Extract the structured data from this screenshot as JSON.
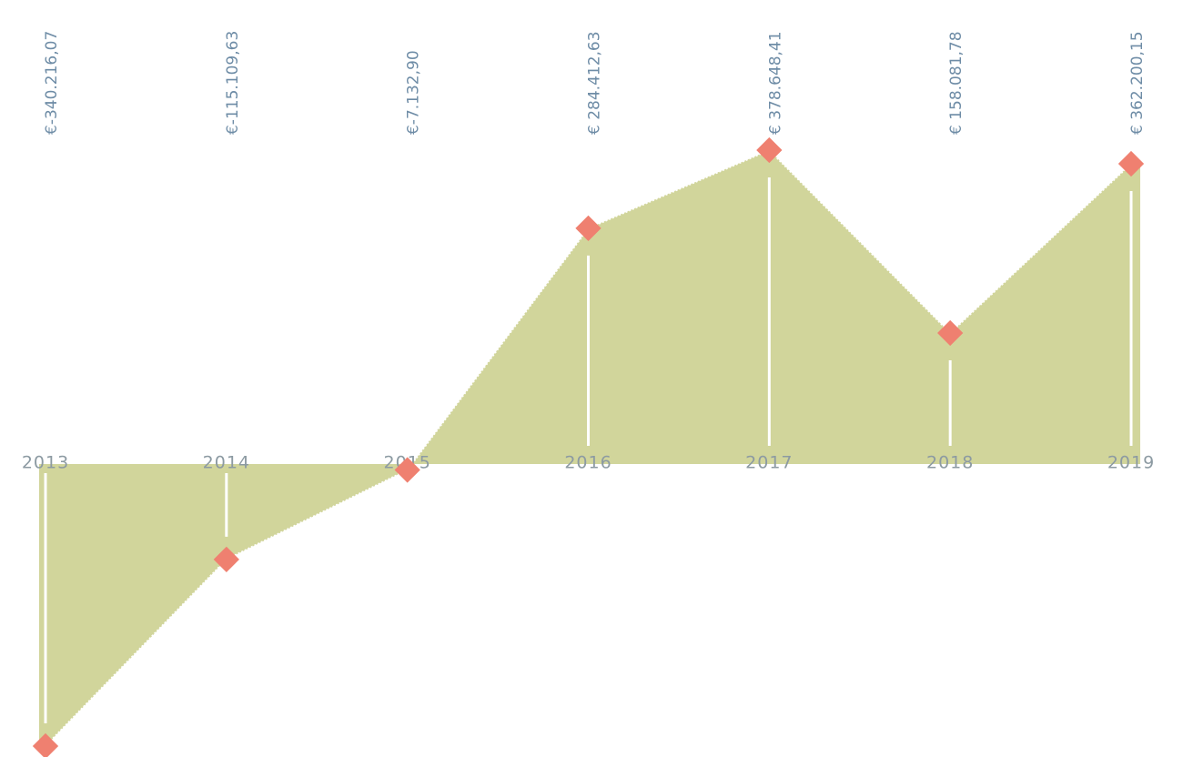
{
  "chart_data": {
    "type": "area",
    "categories": [
      "2013",
      "2014",
      "2015",
      "2016",
      "2017",
      "2018",
      "2019"
    ],
    "values": [
      -340216.07,
      -115109.63,
      -7132.9,
      284412.63,
      378648.41,
      158081.78,
      362200.15
    ],
    "value_labels": [
      "€-340.216,07",
      "€-115.109,63",
      "€-7.132,90",
      "€ 284.412,63",
      "€ 378.648,41",
      "€ 158.081,78",
      "€ 362.200,15"
    ],
    "color": "#d1d59b",
    "marker_color": "#ef8070"
  }
}
